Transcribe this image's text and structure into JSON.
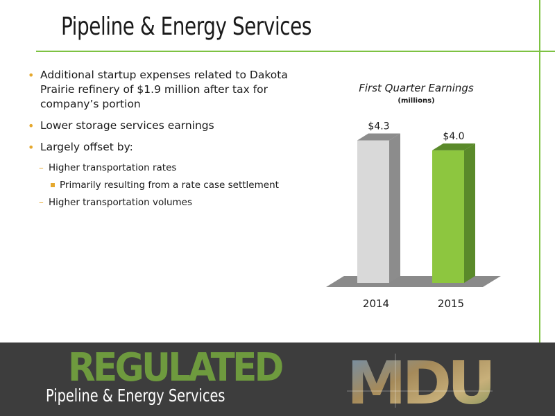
{
  "header": {
    "title": "Pipeline & Energy Services"
  },
  "bullets": {
    "item1": "Additional startup expenses related to Dakota Prairie refinery of $1.9 million after tax for company’s portion",
    "item2": "Lower storage services earnings",
    "item3": "Largely offset by:",
    "sub1": "Higher transportation rates",
    "sub1a": "Primarily resulting from a rate case settlement",
    "sub2": "Higher transportation volumes"
  },
  "chart_data": {
    "type": "bar",
    "title": "First Quarter Earnings",
    "subtitle": "(millions)",
    "categories": [
      "2014",
      "2015"
    ],
    "values": [
      4.3,
      4.0
    ],
    "data_labels": [
      "$4.3",
      "$4.0"
    ],
    "ylim": [
      0,
      4.5
    ],
    "grid": false,
    "colors": [
      "#d9d9d9",
      "#8dc63f"
    ]
  },
  "footer": {
    "banner": "REGULATED",
    "subtitle": "Pipeline & Energy Services",
    "logo_text": "MDU"
  },
  "colors": {
    "accent": "#7dc242",
    "bullet": "#e5a82e",
    "footer_bg": "#3d3d3d",
    "banner": "#6e9a3e"
  }
}
